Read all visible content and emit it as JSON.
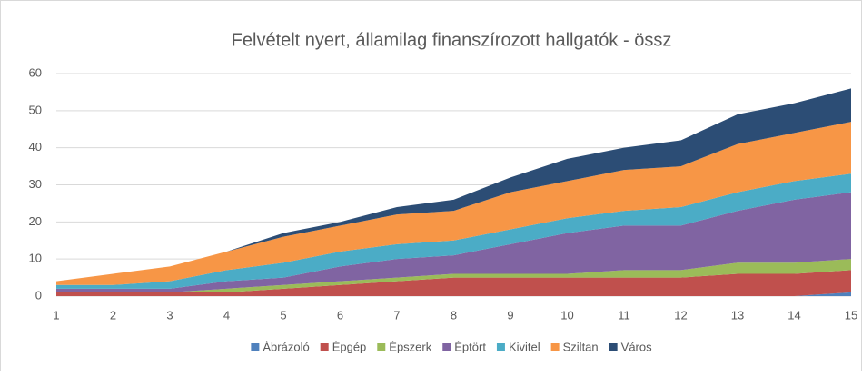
{
  "chart_data": {
    "type": "stacked-area",
    "title": "Felvételt nyert, államilag finanszírozott hallgatók - össz",
    "x": [
      1,
      2,
      3,
      4,
      5,
      6,
      7,
      8,
      9,
      10,
      11,
      12,
      13,
      14,
      15
    ],
    "xlim": [
      1,
      15
    ],
    "ylim": [
      0,
      60
    ],
    "yticks": [
      0,
      10,
      20,
      30,
      40,
      50,
      60
    ],
    "grid": true,
    "legend": "bottom",
    "series": [
      {
        "name": "Ábrázoló",
        "color": "#4f81bd",
        "values": [
          0,
          0,
          0,
          0,
          0,
          0,
          0,
          0,
          0,
          0,
          0,
          0,
          0,
          0,
          1
        ]
      },
      {
        "name": "Épgép",
        "color": "#c0504d",
        "values": [
          1,
          1,
          1,
          1,
          2,
          3,
          4,
          5,
          5,
          5,
          5,
          5,
          6,
          6,
          6
        ]
      },
      {
        "name": "Épszerk",
        "color": "#9bbb59",
        "values": [
          0,
          0,
          0,
          1,
          1,
          1,
          1,
          1,
          1,
          1,
          2,
          2,
          3,
          3,
          3
        ]
      },
      {
        "name": "Éptört",
        "color": "#8064a2",
        "values": [
          1,
          1,
          1,
          2,
          2,
          4,
          5,
          5,
          8,
          11,
          12,
          12,
          14,
          17,
          18
        ]
      },
      {
        "name": "Kivitel",
        "color": "#4bacc6",
        "values": [
          1,
          1,
          2,
          3,
          4,
          4,
          4,
          4,
          4,
          4,
          4,
          5,
          5,
          5,
          5
        ]
      },
      {
        "name": "Sziltan",
        "color": "#f79646",
        "values": [
          1,
          3,
          4,
          5,
          7,
          7,
          8,
          8,
          10,
          10,
          11,
          11,
          13,
          13,
          14
        ]
      },
      {
        "name": "Város",
        "color": "#2c4d75",
        "values": [
          0,
          0,
          0,
          0,
          1,
          1,
          2,
          3,
          4,
          6,
          6,
          7,
          8,
          8,
          9
        ]
      }
    ]
  }
}
